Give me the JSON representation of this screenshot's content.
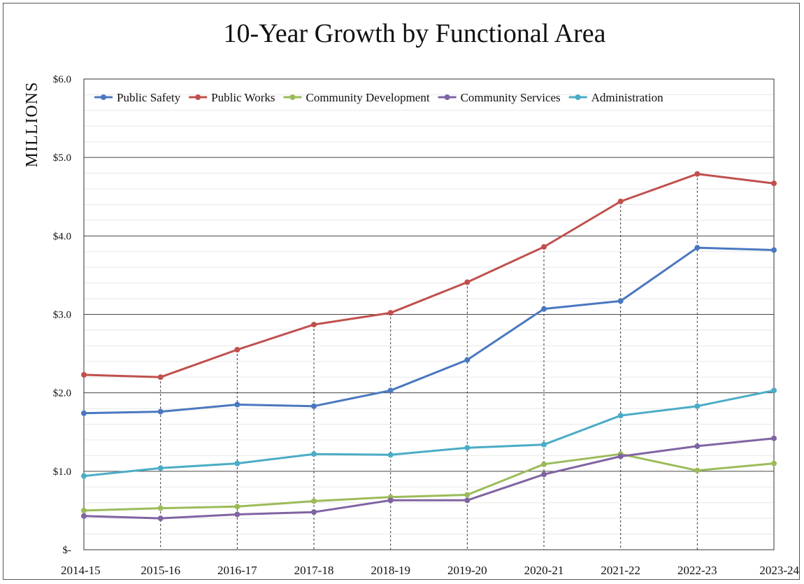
{
  "chart_data": {
    "type": "line",
    "title": "10-Year Growth by Functional Area",
    "ylabel": "MILLIONS",
    "xlabel": "",
    "categories": [
      "2014-15",
      "2015-16",
      "2016-17",
      "2017-18",
      "2018-19",
      "2019-20",
      "2020-21",
      "2021-22",
      "2022-23",
      "2023-24"
    ],
    "ylim": [
      0,
      6
    ],
    "y_ticks": [
      6,
      5,
      4,
      3,
      2,
      1,
      0
    ],
    "y_tick_labels": [
      "$6.0",
      "$5.0",
      "$4.0",
      "$3.0",
      "$2.0",
      "$1.0",
      "$-"
    ],
    "grid": true,
    "legend_position": "top",
    "series": [
      {
        "name": "Public Safety",
        "color": "#4a78c0",
        "values": [
          1.74,
          1.76,
          1.85,
          1.83,
          2.03,
          2.42,
          3.07,
          3.17,
          3.85,
          3.82
        ]
      },
      {
        "name": "Public Works",
        "color": "#c0504d",
        "values": [
          2.23,
          2.2,
          2.55,
          2.87,
          3.02,
          3.41,
          3.86,
          4.44,
          4.79,
          4.67
        ]
      },
      {
        "name": "Community Development",
        "color": "#9bbb59",
        "values": [
          0.5,
          0.53,
          0.55,
          0.62,
          0.67,
          0.7,
          1.09,
          1.22,
          1.01,
          1.1
        ]
      },
      {
        "name": "Community Services",
        "color": "#8064a2",
        "values": [
          0.43,
          0.4,
          0.45,
          0.48,
          0.63,
          0.63,
          0.96,
          1.19,
          1.32,
          1.42
        ]
      },
      {
        "name": "Administration",
        "color": "#4bacc6",
        "values": [
          0.94,
          1.04,
          1.1,
          1.22,
          1.21,
          1.3,
          1.34,
          1.71,
          1.83,
          2.03
        ]
      }
    ]
  }
}
